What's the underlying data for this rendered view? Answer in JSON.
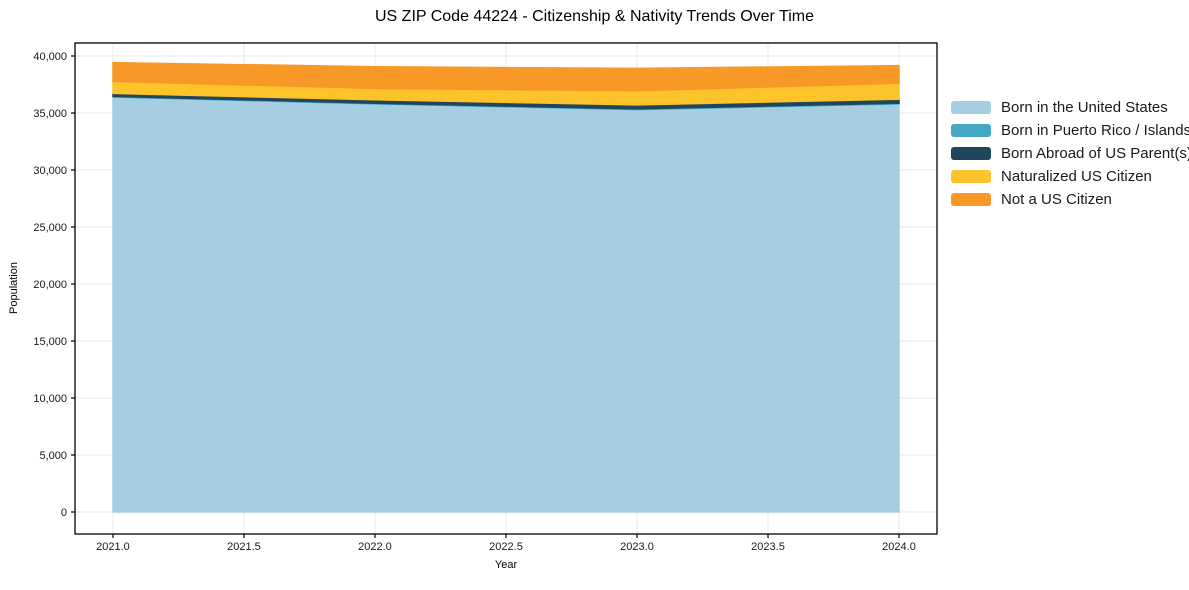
{
  "header": {
    "title": "US ZIP Code 44224 - Citizenship & Nativity Trends Over Time"
  },
  "chart_data": {
    "type": "area",
    "stacked": true,
    "title": "US ZIP Code 44224 - Citizenship & Nativity Trends Over Time",
    "xlabel": "Year",
    "ylabel": "Population",
    "x": [
      2021,
      2022,
      2023,
      2024
    ],
    "series": [
      {
        "name": "Born in the United States",
        "color": "#A6CEE3",
        "values": [
          36400,
          35800,
          35300,
          35800
        ]
      },
      {
        "name": "Born in Puerto Rico / Islands",
        "color": "#45A7C4",
        "values": [
          60,
          60,
          60,
          60
        ]
      },
      {
        "name": "Born Abroad of US Parent(s)",
        "color": "#21455C",
        "values": [
          260,
          300,
          350,
          350
        ]
      },
      {
        "name": "Naturalized US Citizen",
        "color": "#FDC32B",
        "values": [
          1050,
          1000,
          1250,
          1400
        ]
      },
      {
        "name": "Not a US Citizen",
        "color": "#F89827",
        "values": [
          1650,
          1900,
          1950,
          1550
        ]
      }
    ],
    "x_ticks": {
      "values": [
        2021.0,
        2021.5,
        2022.0,
        2022.5,
        2023.0,
        2023.5,
        2024.0
      ],
      "labels": [
        "2021.0",
        "2021.5",
        "2022.0",
        "2022.5",
        "2023.0",
        "2023.5",
        "2024.0"
      ]
    },
    "y_ticks": {
      "values": [
        0,
        5000,
        10000,
        15000,
        20000,
        25000,
        30000,
        35000,
        40000
      ],
      "labels": [
        "0",
        "5,000",
        "10,000",
        "15,000",
        "20,000",
        "25,000",
        "30,000",
        "35,000",
        "40,000"
      ]
    },
    "xlim": [
      2020.855,
      2024.145
    ],
    "ylim": [
      -1930,
      41140
    ],
    "grid": true,
    "legend_position": "right-outside"
  },
  "colors": {
    "background": "#ffffff",
    "grid": "#e9e9e9",
    "spine": "#000000",
    "tick_text": "#1a1a1a"
  }
}
